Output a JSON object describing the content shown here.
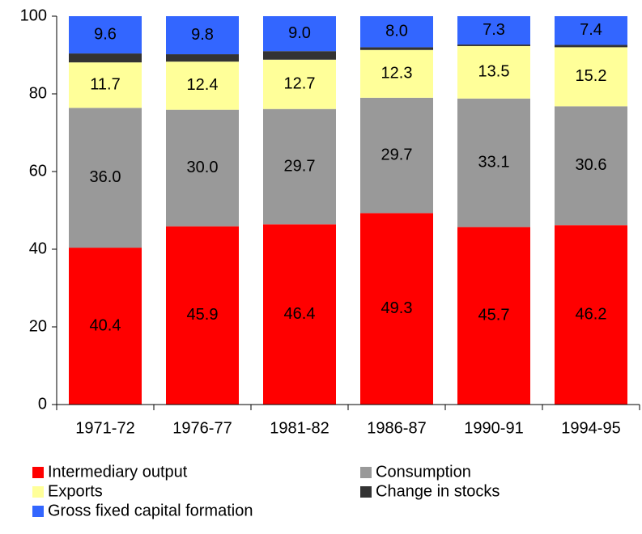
{
  "chart_data": {
    "type": "stacked_bar",
    "categories": [
      "1971-72",
      "1976-77",
      "1981-82",
      "1986-87",
      "1990-91",
      "1994-95"
    ],
    "series": [
      {
        "name": "Intermediary output",
        "color": "#ff0000",
        "values": [
          40.4,
          45.9,
          46.4,
          49.3,
          45.7,
          46.2
        ],
        "value_labels": [
          "40.4",
          "45.9",
          "46.4",
          "49.3",
          "45.7",
          "46.2"
        ]
      },
      {
        "name": "Consumption",
        "color": "#999999",
        "values": [
          36.0,
          30.0,
          29.7,
          29.7,
          33.1,
          30.6
        ],
        "value_labels": [
          "36.0",
          "30.0",
          "29.7",
          "29.7",
          "33.1",
          "30.6"
        ]
      },
      {
        "name": "Exports",
        "color": "#ffff99",
        "values": [
          11.7,
          12.4,
          12.7,
          12.3,
          13.5,
          15.2
        ],
        "value_labels": [
          "11.7",
          "12.4",
          "12.7",
          "12.3",
          "13.5",
          "15.2"
        ]
      },
      {
        "name": "Change in stocks",
        "color": "#333333",
        "values": [
          2.3,
          1.9,
          2.2,
          0.7,
          0.4,
          0.6
        ]
      },
      {
        "name": "Gross fixed capital formation",
        "color": "#3366ff",
        "values": [
          9.6,
          9.8,
          9.0,
          8.0,
          7.3,
          7.4
        ],
        "value_labels": [
          "9.6",
          "9.8",
          "9.0",
          "8.0",
          "7.3",
          "7.4"
        ]
      }
    ],
    "ylim": [
      0,
      100
    ],
    "yticks": [
      0,
      20,
      40,
      60,
      80,
      100
    ]
  }
}
